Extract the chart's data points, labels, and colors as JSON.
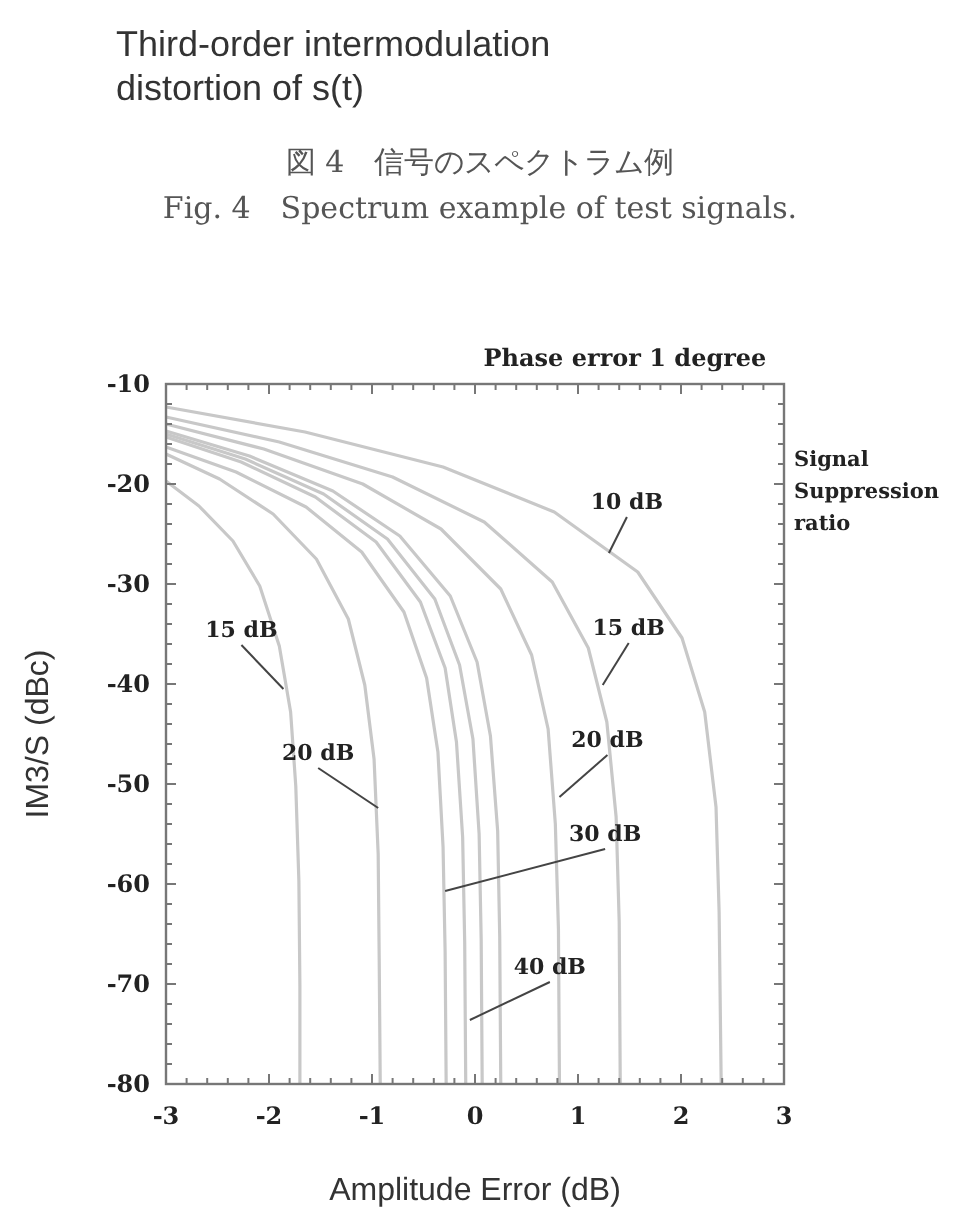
{
  "chart_data": {
    "type": "line",
    "title": "Third-order intermodulation distortion of s(t)",
    "subtitle": "Phase error 1 degree",
    "xlabel": "Amplitude Error (dB)",
    "ylabel": "IM3/S (dBc)",
    "xlim": [
      -3,
      3
    ],
    "ylim": [
      -80,
      -10
    ],
    "xticks": [
      -3,
      -2,
      -1,
      0,
      1,
      2,
      3
    ],
    "yticks": [
      -80,
      -70,
      -60,
      -50,
      -40,
      -30,
      -20,
      -10
    ],
    "annotations": [
      "図 4　信号のスペクトラム例",
      "Fig. 4　Spectrum example of test signals.",
      "Signal Suppression ratio",
      {
        "text": "10 dB",
        "x": 1.3,
        "y": -26.9
      },
      {
        "text": "15 dB",
        "x": -1.86,
        "y": -40.5
      },
      {
        "text": "15 dB",
        "x": 1.24,
        "y": -40.1
      },
      {
        "text": "20 dB",
        "x": -0.94,
        "y": -52.4
      },
      {
        "text": "20 dB",
        "x": 0.82,
        "y": -51.3
      },
      {
        "text": "30 dB",
        "x": -0.29,
        "y": -60.7
      },
      {
        "text": "40 dB",
        "x": -0.05,
        "y": -73.6
      }
    ],
    "series": [
      {
        "color": "#c8c8c8",
        "x": [
          -3,
          -1.65,
          -0.31,
          0.77,
          1.58,
          2.01,
          2.23,
          2.34,
          2.37,
          2.39
        ],
        "values": [
          -12.3,
          -14.8,
          -18.3,
          -22.8,
          -28.8,
          -35.4,
          -42.8,
          -52.3,
          -62.8,
          -80
        ]
      },
      {
        "color": "#c8c8c8",
        "x": [
          -3,
          -1.9,
          -0.8,
          0.09,
          0.75,
          1.1,
          1.28,
          1.37,
          1.4,
          1.41
        ],
        "values": [
          -13.3,
          -15.8,
          -19.3,
          -23.8,
          -29.8,
          -36.4,
          -43.8,
          -53.3,
          -63.8,
          -80
        ]
      },
      {
        "color": "#c8c8c8",
        "x": [
          -3,
          -2.05,
          -1.09,
          -0.33,
          0.25,
          0.55,
          0.71,
          0.78,
          0.81,
          0.82
        ],
        "values": [
          -14,
          -16.5,
          -20,
          -24.5,
          -30.5,
          -37.1,
          -44.5,
          -54,
          -64.5,
          -80
        ]
      },
      {
        "color": "#c8c8c8",
        "x": [
          -3,
          -2.19,
          -1.38,
          -0.73,
          -0.24,
          0.02,
          0.15,
          0.22,
          0.24,
          0.25
        ],
        "values": [
          -14.7,
          -17.2,
          -20.7,
          -25.2,
          -31.2,
          -37.8,
          -45.2,
          -54.7,
          -65.2,
          -80
        ]
      },
      {
        "color": "#c8c8c8",
        "x": [
          -3,
          -2.23,
          -1.47,
          -0.85,
          -0.39,
          -0.15,
          -0.02,
          0.04,
          0.06,
          0.07
        ],
        "values": [
          -15,
          -17.5,
          -21,
          -25.5,
          -31.5,
          -38.1,
          -45.5,
          -55,
          -65.5,
          -80
        ]
      },
      {
        "color": "#c8c8c8",
        "x": [
          -3,
          -2.27,
          -1.55,
          -0.96,
          -0.53,
          -0.29,
          -0.18,
          -0.12,
          -0.1,
          -0.09
        ],
        "values": [
          -15.3,
          -17.8,
          -21.3,
          -25.8,
          -31.8,
          -38.4,
          -45.8,
          -55.3,
          -65.8,
          -80
        ]
      },
      {
        "color": "#c8c8c8",
        "x": [
          -3,
          -2.32,
          -1.64,
          -1.1,
          -0.69,
          -0.47,
          -0.36,
          -0.31,
          -0.29,
          -0.28
        ],
        "values": [
          -16.3,
          -18.8,
          -22.3,
          -26.8,
          -32.8,
          -39.4,
          -46.8,
          -56.3,
          -66.8,
          -80
        ]
      },
      {
        "color": "#c8c8c8",
        "x": [
          -3,
          -2.48,
          -1.96,
          -1.54,
          -1.23,
          -1.07,
          -0.98,
          -0.94,
          -0.93,
          -0.92
        ],
        "values": [
          -17,
          -19.5,
          -23,
          -27.5,
          -33.5,
          -40.1,
          -47.5,
          -57,
          -67.5,
          -80
        ]
      },
      {
        "color": "#c8c8c8",
        "x": [
          -3,
          -2.68,
          -2.35,
          -2.09,
          -1.9,
          -1.79,
          -1.74,
          -1.71,
          -1.7,
          -1.7
        ],
        "values": [
          -19.7,
          -22.2,
          -25.7,
          -30.2,
          -36.2,
          -42.8,
          -50.2,
          -59.7,
          -70.2,
          -80
        ]
      }
    ]
  }
}
